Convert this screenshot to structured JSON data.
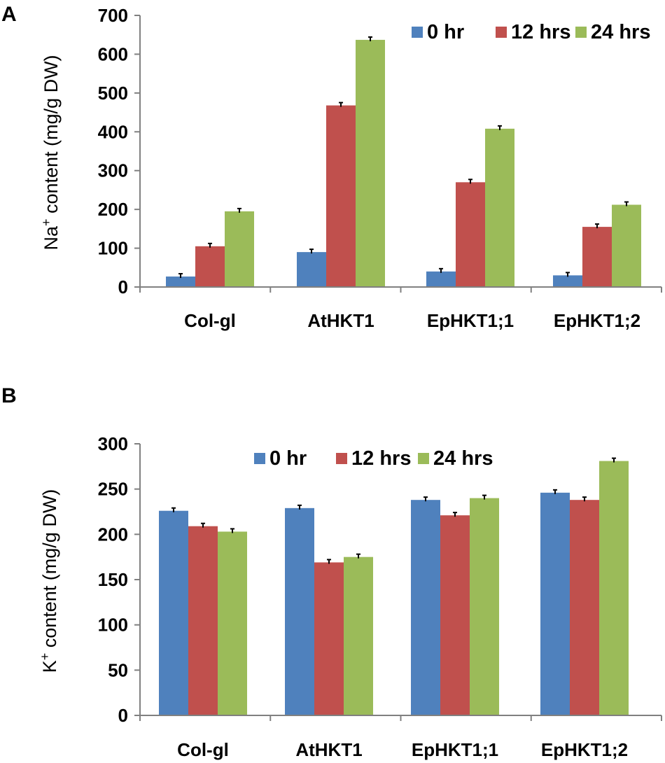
{
  "colors": {
    "series": [
      "#4F81BD",
      "#C0504D",
      "#9BBB59"
    ],
    "axis": "#808080",
    "errorbar": "#000000"
  },
  "chart_data": [
    {
      "panel": "A",
      "type": "bar",
      "ylabel_prefix": "Na",
      "ylabel_sup": "+",
      "ylabel_suffix": " content (mg/g DW)",
      "ylim": [
        0,
        700
      ],
      "ytick_step": 100,
      "yticks": [
        "0",
        "100",
        "200",
        "300",
        "400",
        "500",
        "600",
        "700"
      ],
      "categories": [
        "Col-gl",
        "AtHKT1",
        "EpHKT1;1",
        "EpHKT1;2"
      ],
      "legend_position": "top-right",
      "series": [
        {
          "name": "0 hr",
          "values": [
            27,
            90,
            40,
            30
          ]
        },
        {
          "name": "12 hrs",
          "values": [
            105,
            468,
            270,
            155
          ]
        },
        {
          "name": "24 hrs",
          "values": [
            195,
            637,
            408,
            212
          ]
        }
      ]
    },
    {
      "panel": "B",
      "type": "bar",
      "ylabel_prefix": "K",
      "ylabel_sup": "+",
      "ylabel_suffix": " content (mg/g DW)",
      "ylim": [
        0,
        300
      ],
      "ytick_step": 50,
      "yticks": [
        "0",
        "50",
        "100",
        "150",
        "200",
        "250",
        "300"
      ],
      "categories": [
        "Col-gl",
        "AtHKT1",
        "EpHKT1;1",
        "EpHKT1;2"
      ],
      "legend_position": "top-center",
      "series": [
        {
          "name": "0 hr",
          "values": [
            226,
            229,
            238,
            246
          ]
        },
        {
          "name": "12 hrs",
          "values": [
            209,
            169,
            221,
            238
          ]
        },
        {
          "name": "24 hrs",
          "values": [
            203,
            175,
            240,
            281
          ]
        }
      ]
    }
  ]
}
